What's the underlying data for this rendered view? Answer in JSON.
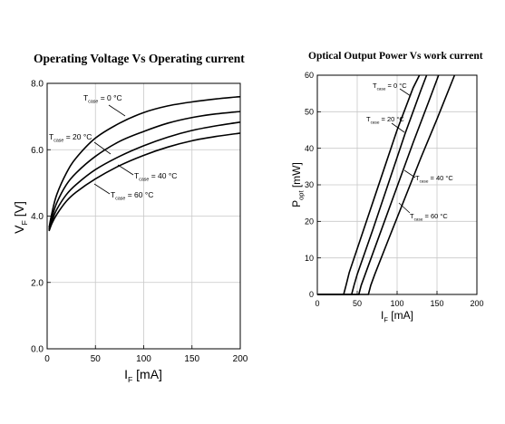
{
  "chart_data": [
    {
      "type": "line",
      "title": "Operating Voltage Vs Operating current",
      "xlabel": {
        "main": "I",
        "sub": "F",
        "unit": " [mA]"
      },
      "ylabel": {
        "main": "V",
        "sub": "F",
        "unit": " [V]"
      },
      "xlim": [
        0,
        200
      ],
      "ylim": [
        0.0,
        8.0
      ],
      "xticks": [
        "0",
        "50",
        "100",
        "150",
        "200"
      ],
      "yticks": [
        "0.0",
        "2.0",
        "4.0",
        "6.0",
        "8.0"
      ],
      "grid": true,
      "series": [
        {
          "name": {
            "main": "T",
            "sub": "case",
            "rest": " = 0 °C"
          },
          "x": [
            2,
            5,
            10,
            20,
            30,
            50,
            75,
            100,
            125,
            150,
            175,
            200
          ],
          "y": [
            3.65,
            4.1,
            4.65,
            5.3,
            5.75,
            6.35,
            6.8,
            7.12,
            7.32,
            7.44,
            7.53,
            7.6
          ]
        },
        {
          "name": {
            "main": "T",
            "sub": "case",
            "rest": " = 20 °C"
          },
          "x": [
            2,
            5,
            10,
            20,
            30,
            50,
            75,
            100,
            125,
            150,
            175,
            200
          ],
          "y": [
            3.6,
            3.95,
            4.4,
            4.95,
            5.3,
            5.8,
            6.25,
            6.55,
            6.8,
            6.97,
            7.08,
            7.15
          ]
        },
        {
          "name": {
            "main": "T",
            "sub": "case",
            "rest": " = 40 °C"
          },
          "x": [
            2,
            5,
            10,
            20,
            30,
            50,
            75,
            100,
            125,
            150,
            175,
            200
          ],
          "y": [
            3.58,
            3.85,
            4.2,
            4.65,
            4.95,
            5.4,
            5.8,
            6.12,
            6.38,
            6.58,
            6.72,
            6.83
          ]
        },
        {
          "name": {
            "main": "T",
            "sub": "case",
            "rest": " = 60 °C"
          },
          "x": [
            2,
            5,
            10,
            20,
            30,
            50,
            75,
            100,
            125,
            150,
            175,
            200
          ],
          "y": [
            3.55,
            3.78,
            4.05,
            4.45,
            4.72,
            5.12,
            5.52,
            5.83,
            6.08,
            6.27,
            6.4,
            6.5
          ]
        }
      ]
    },
    {
      "type": "line",
      "title": "Optical Output Power  Vs work current",
      "xlabel": {
        "main": "I",
        "sub": "F",
        "unit": " [mA]"
      },
      "ylabel": {
        "main": "P",
        "sub": "opt",
        "unit": " [mW]"
      },
      "xlim": [
        0,
        200
      ],
      "ylim": [
        0,
        60
      ],
      "xticks": [
        "0",
        "50",
        "100",
        "150",
        "200"
      ],
      "yticks": [
        "0",
        "10",
        "20",
        "30",
        "40",
        "50",
        "60"
      ],
      "grid": true,
      "series": [
        {
          "name": {
            "main": "T",
            "sub": "case",
            "rest": " = 0 °C"
          },
          "x": [
            0,
            33,
            36,
            40,
            60,
            80,
            100,
            120,
            128
          ],
          "y": [
            0,
            0,
            2.5,
            6,
            19,
            32,
            45,
            56.5,
            60
          ]
        },
        {
          "name": {
            "main": "T",
            "sub": "case",
            "rest": " = 20 °C"
          },
          "x": [
            0,
            43,
            46,
            50,
            70,
            90,
            110,
            130,
            137
          ],
          "y": [
            0,
            0,
            2.5,
            5.5,
            18,
            31,
            44,
            56,
            60
          ]
        },
        {
          "name": {
            "main": "T",
            "sub": "case",
            "rest": " = 40 °C"
          },
          "x": [
            0,
            52,
            55,
            60,
            80,
            100,
            120,
            140,
            152
          ],
          "y": [
            0,
            0,
            2.5,
            5.5,
            17.5,
            29.5,
            41.5,
            53,
            60
          ]
        },
        {
          "name": {
            "main": "T",
            "sub": "case",
            "rest": " = 60 °C"
          },
          "x": [
            0,
            64,
            67,
            72,
            90,
            110,
            130,
            150,
            172
          ],
          "y": [
            0,
            0,
            2.5,
            5.5,
            15.5,
            26.5,
            37.5,
            48,
            60
          ]
        }
      ]
    }
  ]
}
